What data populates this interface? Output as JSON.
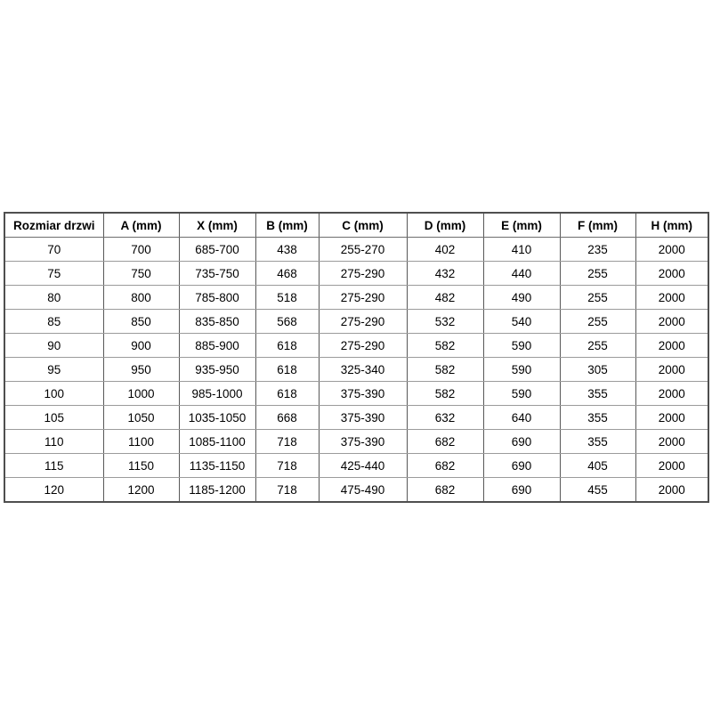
{
  "chart_data": {
    "type": "table",
    "title": "",
    "columns": [
      "Rozmiar drzwi",
      "A (mm)",
      "X (mm)",
      "B (mm)",
      "C (mm)",
      "D (mm)",
      "E (mm)",
      "F (mm)",
      "H (mm)"
    ],
    "rows": [
      [
        "70",
        "700",
        "685-700",
        "438",
        "255-270",
        "402",
        "410",
        "235",
        "2000"
      ],
      [
        "75",
        "750",
        "735-750",
        "468",
        "275-290",
        "432",
        "440",
        "255",
        "2000"
      ],
      [
        "80",
        "800",
        "785-800",
        "518",
        "275-290",
        "482",
        "490",
        "255",
        "2000"
      ],
      [
        "85",
        "850",
        "835-850",
        "568",
        "275-290",
        "532",
        "540",
        "255",
        "2000"
      ],
      [
        "90",
        "900",
        "885-900",
        "618",
        "275-290",
        "582",
        "590",
        "255",
        "2000"
      ],
      [
        "95",
        "950",
        "935-950",
        "618",
        "325-340",
        "582",
        "590",
        "305",
        "2000"
      ],
      [
        "100",
        "1000",
        "985-1000",
        "618",
        "375-390",
        "582",
        "590",
        "355",
        "2000"
      ],
      [
        "105",
        "1050",
        "1035-1050",
        "668",
        "375-390",
        "632",
        "640",
        "355",
        "2000"
      ],
      [
        "110",
        "1100",
        "1085-1100",
        "718",
        "375-390",
        "682",
        "690",
        "355",
        "2000"
      ],
      [
        "115",
        "1150",
        "1135-1150",
        "718",
        "425-440",
        "682",
        "690",
        "405",
        "2000"
      ],
      [
        "120",
        "1200",
        "1185-1200",
        "718",
        "475-490",
        "682",
        "690",
        "455",
        "2000"
      ]
    ]
  }
}
